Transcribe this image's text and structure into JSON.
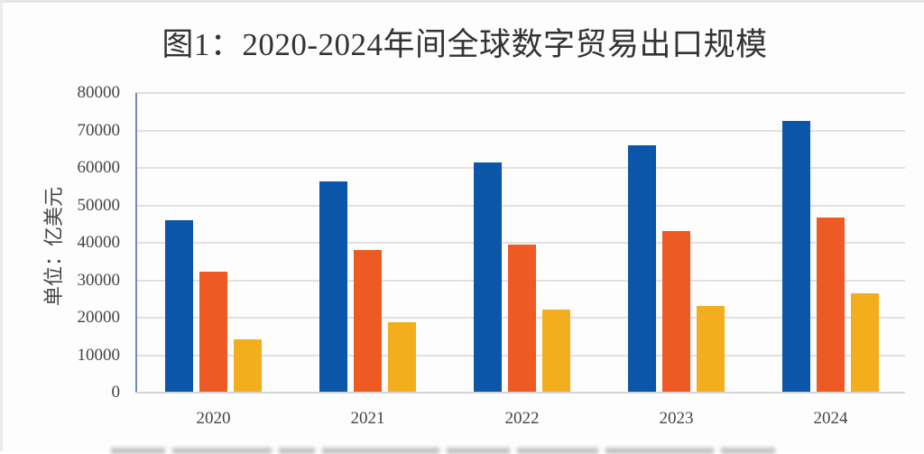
{
  "chart_data": {
    "type": "bar",
    "title": "图1：2020-2024年间全球数字贸易出口规模",
    "xlabel": "",
    "ylabel": "单位：亿美元",
    "ylim": [
      0,
      80000
    ],
    "yticks": [
      "0",
      "10000",
      "20000",
      "30000",
      "40000",
      "50000",
      "60000",
      "70000",
      "80000"
    ],
    "categories": [
      "2020",
      "2021",
      "2022",
      "2023",
      "2024"
    ],
    "grid": true,
    "legend_position": "bottom (cut off, illegible)",
    "series": [
      {
        "name": "series-1",
        "color": "#0B56A8",
        "values": [
          45900,
          56100,
          61300,
          65800,
          72400
        ]
      },
      {
        "name": "series-2",
        "color": "#EE5A24",
        "values": [
          32100,
          37800,
          39400,
          42800,
          46400
        ]
      },
      {
        "name": "series-3",
        "color": "#F2AE1C",
        "values": [
          14000,
          18500,
          22000,
          23000,
          26200
        ]
      }
    ]
  },
  "colors": {
    "series1": "#0B56A8",
    "series2": "#EE5A24",
    "series3": "#F2AE1C",
    "axis": "#6E8BBE",
    "grid": "#E1E1E1"
  }
}
